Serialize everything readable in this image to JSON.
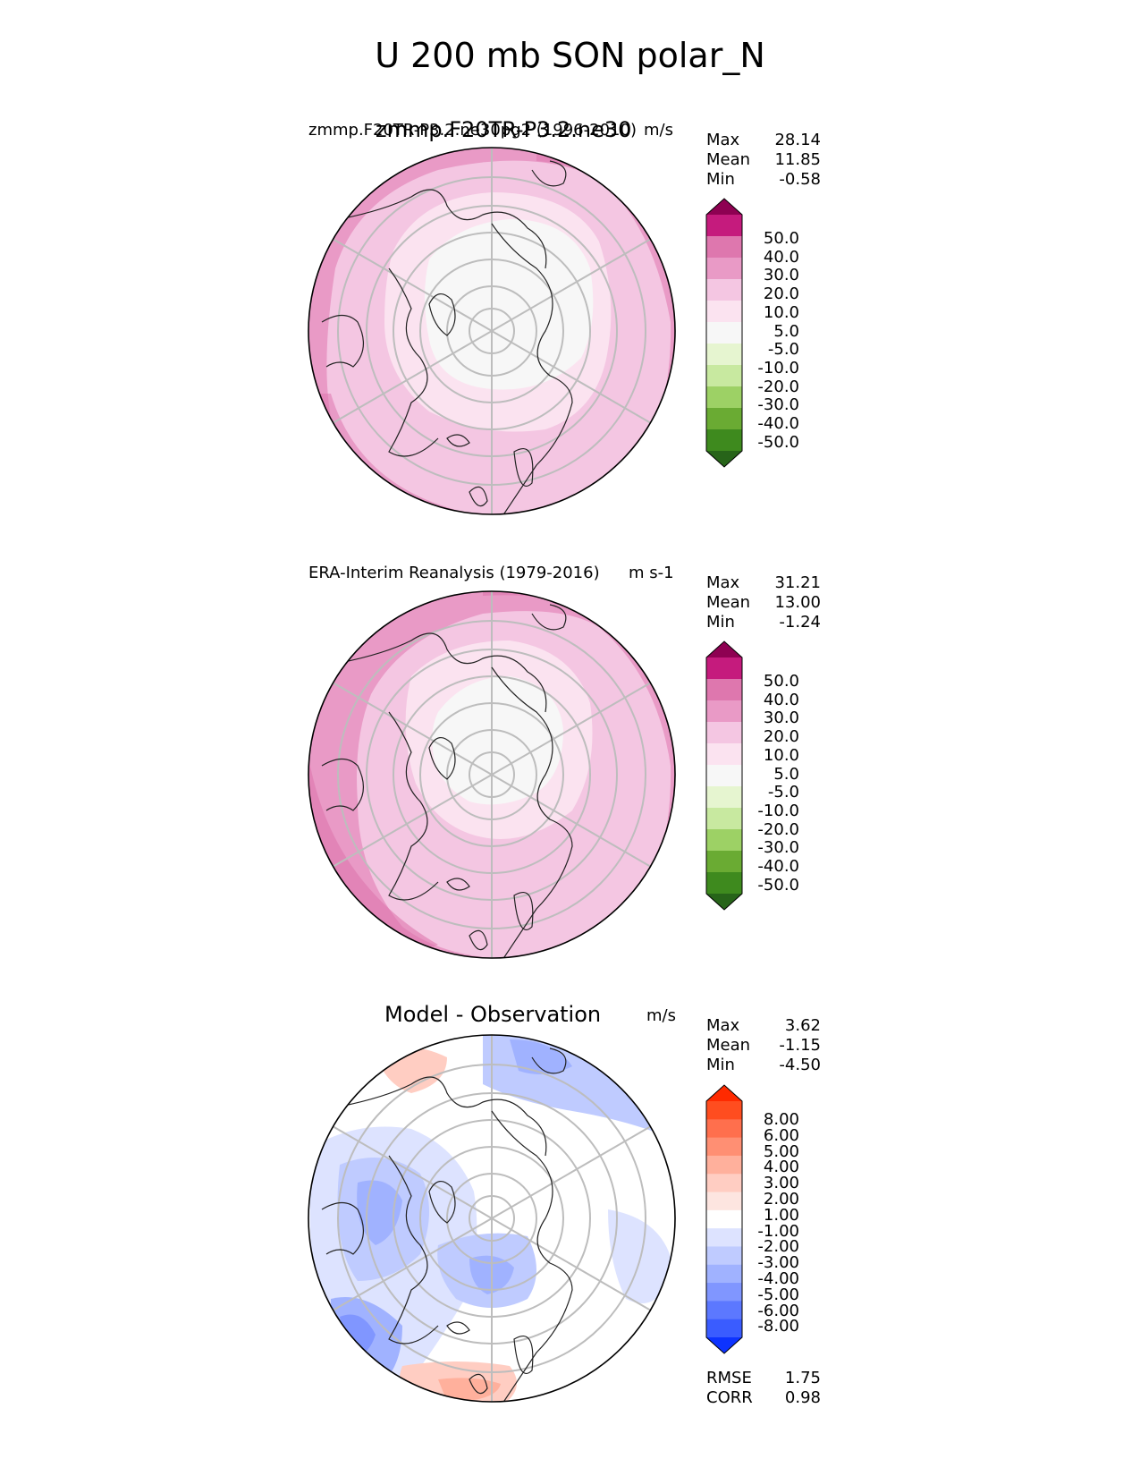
{
  "figure": {
    "title": "U 200 mb SON polar_N"
  },
  "panels": [
    {
      "title_left": "zmmp.F20TR-P3.2.ne30pg2 (1996-2010)",
      "title_center": "zmmp.F20TR-P3.2.ne30",
      "units": "m/s",
      "stats": {
        "max_label": "Max",
        "max": "28.14",
        "mean_label": "Mean",
        "mean": "11.85",
        "min_label": "Min",
        "min": "-0.58"
      },
      "colorbar": [
        "50.0",
        "40.0",
        "30.0",
        "20.0",
        "10.0",
        "5.0",
        "-5.0",
        "-10.0",
        "-20.0",
        "-30.0",
        "-40.0",
        "-50.0"
      ],
      "colors": [
        "#8e0152",
        "#c51b7d",
        "#de77ae",
        "#e99ac6",
        "#f4c6e2",
        "#fbe3f0",
        "#f7f7f7",
        "#e6f5d0",
        "#c8e9a0",
        "#9dd165",
        "#6aab33",
        "#3e8a1e",
        "#276419"
      ]
    },
    {
      "title_left": "ERA-Interim Reanalysis (1979-2016)",
      "units": "m s-1",
      "stats": {
        "max_label": "Max",
        "max": "31.21",
        "mean_label": "Mean",
        "mean": "13.00",
        "min_label": "Min",
        "min": "-1.24"
      },
      "colorbar": [
        "50.0",
        "40.0",
        "30.0",
        "20.0",
        "10.0",
        "5.0",
        "-5.0",
        "-10.0",
        "-20.0",
        "-30.0",
        "-40.0",
        "-50.0"
      ],
      "colors": [
        "#8e0152",
        "#c51b7d",
        "#de77ae",
        "#e99ac6",
        "#f4c6e2",
        "#fbe3f0",
        "#f7f7f7",
        "#e6f5d0",
        "#c8e9a0",
        "#9dd165",
        "#6aab33",
        "#3e8a1e",
        "#276419"
      ]
    },
    {
      "title_left": "Model - Observation",
      "units": "m/s",
      "stats": {
        "max_label": "Max",
        "max": "3.62",
        "mean_label": "Mean",
        "mean": "-1.15",
        "min_label": "Min",
        "min": "-4.50"
      },
      "colorbar": [
        "8.00",
        "6.00",
        "5.00",
        "4.00",
        "3.00",
        "2.00",
        "1.00",
        "-1.00",
        "-2.00",
        "-3.00",
        "-4.00",
        "-5.00",
        "-6.00",
        "-8.00"
      ],
      "colors": [
        "#ff2a00",
        "#ff4d1f",
        "#ff6f4d",
        "#ff8f73",
        "#ffb09c",
        "#ffcdc2",
        "#fde5e0",
        "#ffffff",
        "#dde3ff",
        "#bfcbff",
        "#a0b2ff",
        "#8096ff",
        "#5c78ff",
        "#3a5cff",
        "#0d33ff"
      ],
      "extra": {
        "rmse_label": "RMSE",
        "rmse": "1.75",
        "corr_label": "CORR",
        "corr": "0.98"
      }
    }
  ]
}
